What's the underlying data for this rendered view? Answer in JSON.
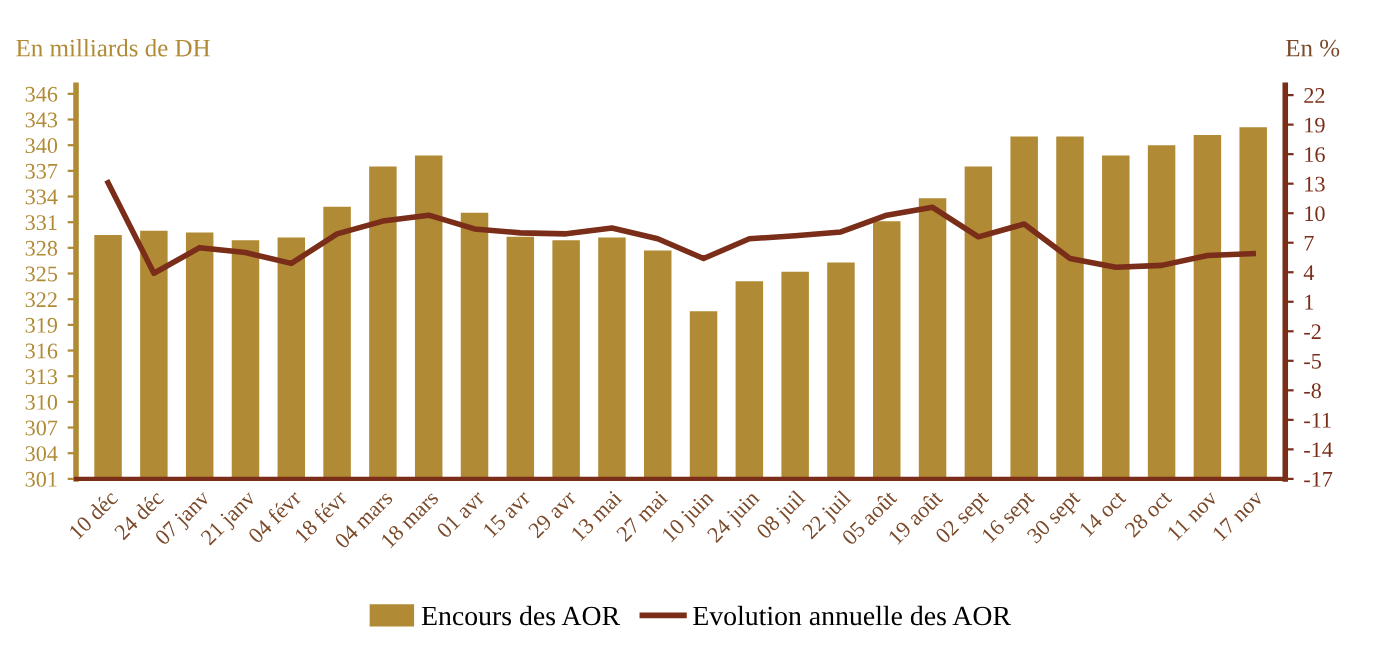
{
  "chart_data": {
    "type": "bar",
    "ylabel": "En milliards de DH",
    "y2label": "En %",
    "categories": [
      "10 déc",
      "24 déc",
      "07 janv",
      "21 janv",
      "04 févr",
      "18 févr",
      "04 mars",
      "18 mars",
      "01 avr",
      "15 avr",
      "29 avr",
      "13 mai",
      "27 mai",
      "10 juin",
      "24 juin",
      "08 juil",
      "22 juil",
      "05 août",
      "19 août",
      "02 sept",
      "16 sept",
      "30 sept",
      "14 oct",
      "28 oct",
      "11 nov",
      "17 nov"
    ],
    "series": [
      {
        "name": "Encours des AOR",
        "color": "#b08a35",
        "values": [
          329.5,
          330.0,
          329.8,
          328.9,
          329.2,
          332.8,
          337.5,
          338.8,
          332.1,
          329.3,
          328.9,
          329.2,
          327.7,
          320.6,
          324.1,
          325.2,
          326.3,
          331.1,
          333.8,
          337.5,
          341.0,
          341.0,
          338.8,
          340.0,
          341.2,
          342.1
        ]
      },
      {
        "name": "Evolution annuelle des AOR",
        "type": "line",
        "axis": "y2",
        "color": "#7a2e1a",
        "values": [
          13.1,
          3.9,
          6.5,
          6.0,
          4.9,
          7.9,
          9.2,
          9.8,
          8.4,
          8.0,
          7.9,
          8.5,
          7.4,
          5.4,
          7.4,
          7.7,
          8.1,
          9.8,
          10.6,
          7.6,
          8.9,
          5.4,
          4.5,
          4.7,
          5.7,
          5.9
        ]
      }
    ],
    "ylim": [
      301,
      347
    ],
    "yticks": [
      301,
      304,
      307,
      310,
      313,
      316,
      319,
      322,
      325,
      328,
      331,
      334,
      337,
      340,
      343,
      346
    ],
    "y2lim": [
      -17,
      23
    ],
    "y2ticks": [
      -17,
      -14,
      -11,
      -8,
      -5,
      -2,
      1,
      4,
      7,
      10,
      13,
      16,
      19,
      22
    ],
    "grid": false,
    "legend": "bottom",
    "marker": "none",
    "line_style": "solid"
  }
}
